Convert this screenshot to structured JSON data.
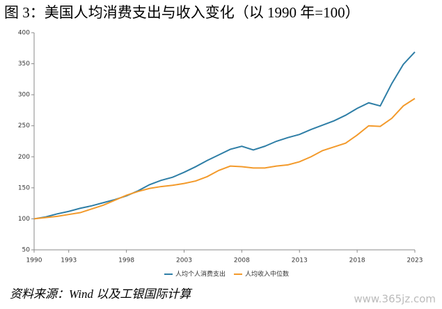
{
  "chart_data": {
    "type": "line",
    "title": "图 3：美国人均消费支出与收入变化（以 1990 年=100）",
    "source": "资料来源：Wind 以及工银国际计算",
    "watermark": "www.365jz.com",
    "x": [
      1990,
      1991,
      1992,
      1993,
      1994,
      1995,
      1996,
      1997,
      1998,
      1999,
      2000,
      2001,
      2002,
      2003,
      2004,
      2005,
      2006,
      2007,
      2008,
      2009,
      2010,
      2011,
      2012,
      2013,
      2014,
      2015,
      2016,
      2017,
      2018,
      2019,
      2020,
      2021,
      2022,
      2023
    ],
    "xlim": [
      1990,
      2023
    ],
    "xticks": [
      1990,
      1993,
      1998,
      2003,
      2008,
      2013,
      2018,
      2023
    ],
    "ylim": [
      50,
      400
    ],
    "yticks": [
      50,
      100,
      150,
      200,
      250,
      300,
      350,
      400
    ],
    "grid": false,
    "legend": "bottom",
    "series": [
      {
        "name": "人均个人消费支出",
        "color": "#2e7ea6",
        "values": [
          100,
          103,
          108,
          112,
          117,
          121,
          126,
          131,
          137,
          145,
          155,
          162,
          167,
          175,
          184,
          194,
          203,
          212,
          217,
          211,
          217,
          225,
          231,
          236,
          244,
          251,
          258,
          267,
          278,
          287,
          282,
          318,
          349,
          369
        ]
      },
      {
        "name": "人均收入中位数",
        "color": "#f39a2b",
        "values": [
          100,
          102,
          104,
          107,
          110,
          116,
          122,
          130,
          138,
          144,
          149,
          152,
          154,
          157,
          161,
          168,
          178,
          185,
          184,
          182,
          182,
          185,
          187,
          192,
          200,
          210,
          216,
          222,
          235,
          250,
          249,
          262,
          282,
          294
        ]
      }
    ]
  }
}
